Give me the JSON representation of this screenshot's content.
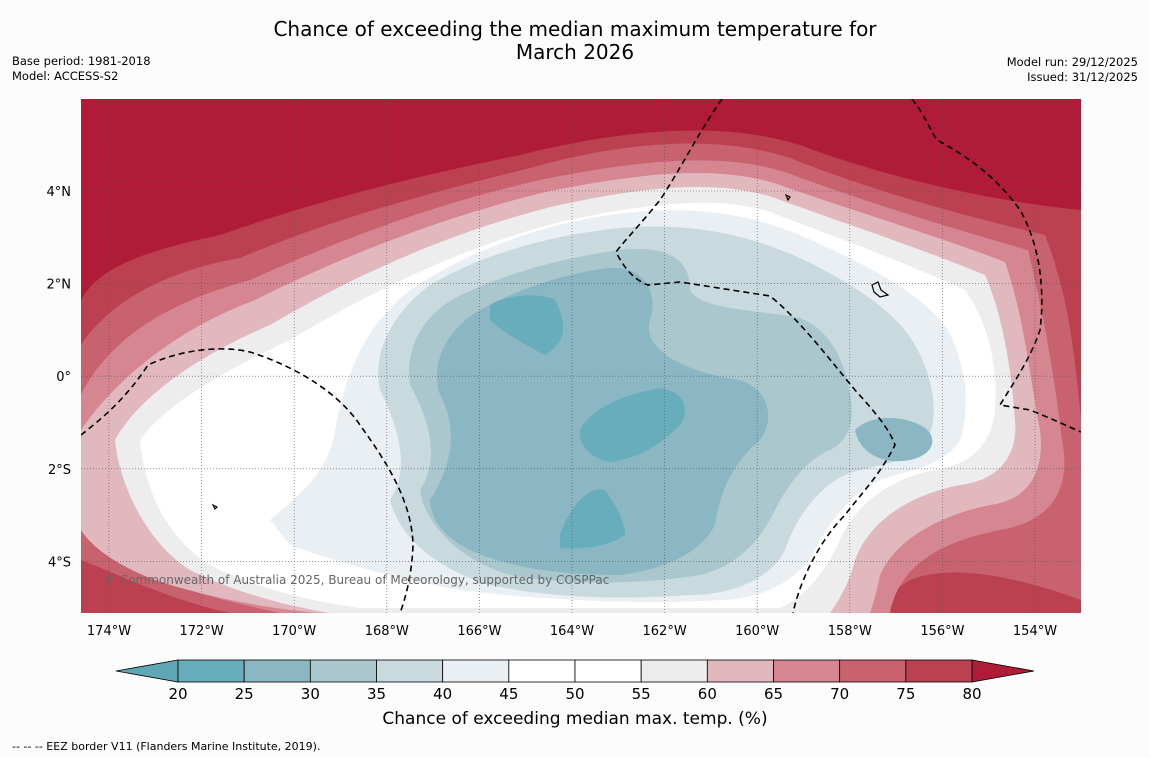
{
  "title_line1": "Chance of exceeding the median maximum temperature for",
  "title_line2": "March 2026",
  "meta_left": {
    "base_period": "Base period: 1981-2018",
    "model": "Model: ACCESS-S2"
  },
  "meta_right": {
    "model_run": "Model run: 29/12/2025",
    "issued": "Issued: 31/12/2025"
  },
  "map": {
    "lon_labels": [
      "174°W",
      "172°W",
      "170°W",
      "168°W",
      "166°W",
      "164°W",
      "162°W",
      "160°W",
      "158°W",
      "156°W",
      "154°W"
    ],
    "lat_labels": [
      "4°N",
      "2°N",
      "0°",
      "2°S",
      "4°S"
    ],
    "copyright": "© Commonwealth of Australia 2025, Bureau of Meteorology, supported by COSPPac",
    "eez_line_name": "EEZ border"
  },
  "colorbar": {
    "ticks": [
      "20",
      "25",
      "30",
      "35",
      "40",
      "45",
      "50",
      "55",
      "60",
      "65",
      "70",
      "75",
      "80"
    ],
    "colors": {
      "below": "#5ea8b6",
      "bins": [
        "#68adbb",
        "#8ab7c3",
        "#a9c7cd",
        "#c9dadf",
        "#e9eff2",
        "#ffffff",
        "#ffffff",
        "#ededee",
        "#e2b8bf",
        "#d58690",
        "#c8626e",
        "#bb4050"
      ],
      "above": "#b01c38"
    },
    "label": "Chance of exceeding median max. temp. (%)"
  },
  "footnote": "--  --  -- EEZ border V11 (Flanders Marine Institute, 2019)."
}
